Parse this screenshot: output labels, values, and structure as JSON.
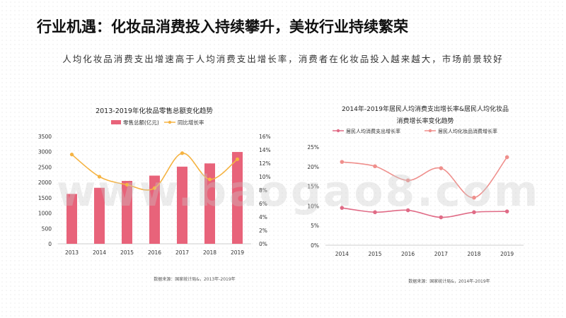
{
  "page": {
    "title": "行业机遇：化妆品消费投入持续攀升，美妆行业持续繁荣",
    "subtitle": "人均化妆品消费支出增速高于人均消费支出增长率，消费者在化妆品投入越来越大，市场前景较好",
    "watermark": "www.baogao8.com"
  },
  "chart_data": [
    {
      "type": "bar",
      "title": "2013-2019年化妆品零售总额变化趋势",
      "categories": [
        "2013",
        "2014",
        "2015",
        "2016",
        "2017",
        "2018",
        "2019"
      ],
      "series": [
        {
          "name": "零售总额(亿元)",
          "type": "bar",
          "axis": "left",
          "color": "#e8637a",
          "values": [
            1625,
            1825,
            2049,
            2222,
            2514,
            2619,
            2992
          ]
        },
        {
          "name": "同比增长率",
          "type": "line",
          "axis": "right",
          "color": "#f5b342",
          "values": [
            13.3,
            10.0,
            8.8,
            8.3,
            13.5,
            9.6,
            12.6
          ]
        }
      ],
      "y_left": {
        "min": 0,
        "max": 3500,
        "ticks": [
          "0",
          "500",
          "1000",
          "1500",
          "2000",
          "2500",
          "3000",
          "3500"
        ]
      },
      "y_right": {
        "min": 0,
        "max": 16,
        "ticks": [
          "0%",
          "2%",
          "4%",
          "6%",
          "8%",
          "10%",
          "12%",
          "14%",
          "16%"
        ]
      },
      "legend": "top",
      "source": "数据来源：国家统计局&，2013年-2019年"
    },
    {
      "type": "line",
      "title": "2014年-2019年居民人均消费支出增长率&居民人均化妆品消费增长率变化趋势",
      "title_lines": [
        "2014年-2019年居民人均消费支出增长率&居民人均化妆品",
        "消费增长率变化趋势"
      ],
      "categories": [
        "2014",
        "2015",
        "2016",
        "2017",
        "2018",
        "2019"
      ],
      "series": [
        {
          "name": "居民人均消费支出增长率",
          "color": "#e06b86",
          "values": [
            9.5,
            8.4,
            8.9,
            7.1,
            8.4,
            8.6
          ]
        },
        {
          "name": "居民人均化妆品消费增长率",
          "color": "#ef8f8c",
          "values": [
            21.2,
            20.1,
            16.5,
            19.6,
            12.1,
            22.4
          ]
        }
      ],
      "y": {
        "min": 0,
        "max": 25,
        "ticks": [
          "0%",
          "5%",
          "10%",
          "15%",
          "20%",
          "25%"
        ]
      },
      "legend": "top",
      "source": "数据来源：国家统计局&，2014年-2019年"
    }
  ]
}
